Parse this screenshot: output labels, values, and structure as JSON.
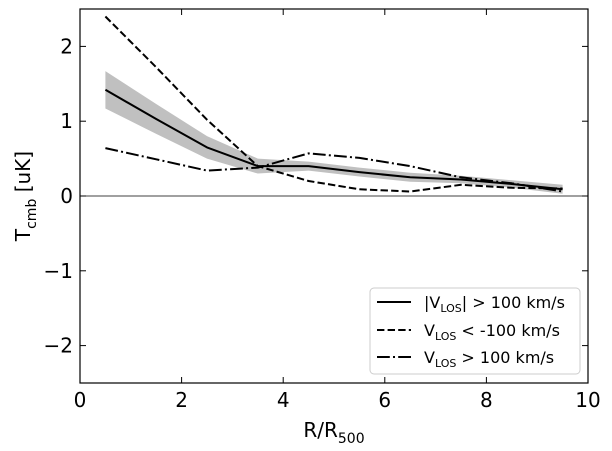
{
  "chart_data": {
    "type": "line",
    "xlabel": {
      "main": "R/R",
      "sub": "500"
    },
    "ylabel": {
      "main": "T",
      "sub": "cmb",
      "unit": "[uK]"
    },
    "xlim": [
      0,
      10
    ],
    "ylim": [
      -2.5,
      2.5
    ],
    "xticks": [
      0,
      2,
      4,
      6,
      8,
      10
    ],
    "yticks": [
      -2,
      -1,
      0,
      1,
      2
    ],
    "ytick_labels": [
      "−2",
      "−1",
      "0",
      "1",
      "2"
    ],
    "zero_line": 0,
    "x": [
      0.5,
      1.5,
      2.5,
      3.5,
      4.5,
      5.5,
      6.5,
      7.5,
      8.5,
      9.5
    ],
    "series": [
      {
        "name": "|V_LOS| > 100 km/s",
        "legend_parts": [
          "|V",
          "LOS",
          "| > 100 km/s"
        ],
        "style": "solid",
        "values": [
          1.42,
          1.03,
          0.65,
          0.4,
          0.4,
          0.32,
          0.25,
          0.22,
          0.16,
          0.09
        ],
        "band_upper": [
          1.67,
          1.23,
          0.8,
          0.5,
          0.46,
          0.38,
          0.31,
          0.27,
          0.21,
          0.15
        ],
        "band_lower": [
          1.17,
          0.83,
          0.5,
          0.3,
          0.34,
          0.26,
          0.19,
          0.17,
          0.11,
          0.03
        ]
      },
      {
        "name": "V_LOS < -100 km/s",
        "legend_parts": [
          "V",
          "LOS",
          " < -100 km/s"
        ],
        "style": "dashed",
        "values": [
          2.4,
          1.72,
          1.02,
          0.4,
          0.2,
          0.09,
          0.06,
          0.15,
          0.11,
          0.1
        ]
      },
      {
        "name": "V_LOS > 100 km/s",
        "legend_parts": [
          "V",
          "LOS",
          " > 100 km/s"
        ],
        "style": "dashdot",
        "values": [
          0.64,
          0.49,
          0.34,
          0.38,
          0.57,
          0.51,
          0.4,
          0.25,
          0.17,
          0.06
        ]
      }
    ],
    "band_color": "#c0c0c0",
    "legend_location": "lower-right"
  }
}
